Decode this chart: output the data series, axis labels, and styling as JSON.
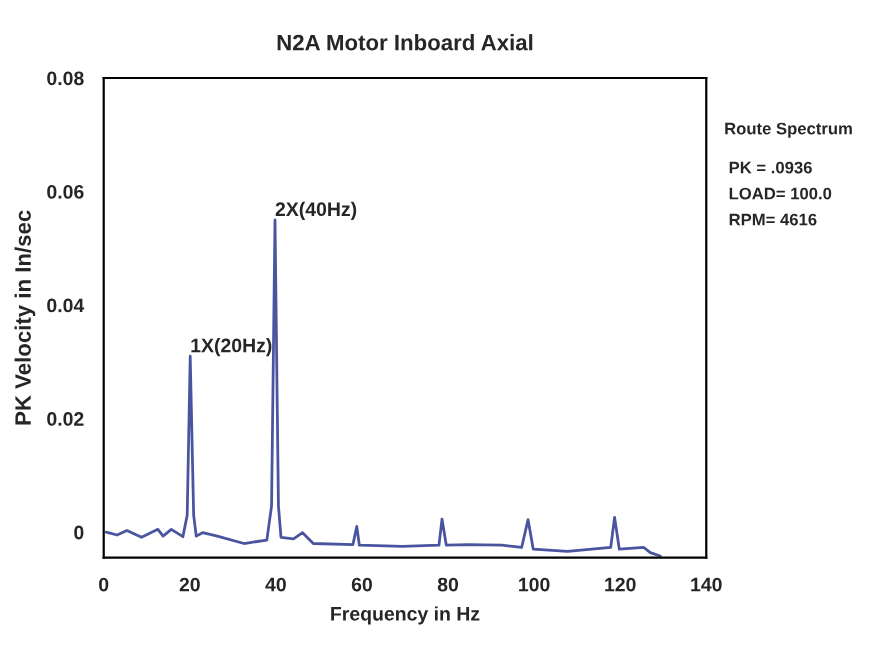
{
  "chart_data": {
    "type": "line",
    "title": "N2A Motor Inboard Axial",
    "xlabel": "Frequency in Hz",
    "ylabel": "PK Velocity in In/sec",
    "x": [
      0.6,
      3.1,
      5.4,
      8.8,
      12.6,
      13.8,
      15.7,
      18.4,
      19.4,
      20.1,
      20.9,
      21.5,
      23,
      26.4,
      32.6,
      37.9,
      39,
      39.8,
      40.6,
      41.2,
      44.1,
      46.2,
      48.7,
      57.9,
      58.8,
      59.4,
      69.4,
      77.9,
      78.6,
      79.6,
      84.8,
      92.5,
      97.1,
      98.6,
      99.8,
      107.8,
      117.8,
      118.7,
      119.8,
      125.5,
      127,
      129.3
    ],
    "series": [
      {
        "color": "#4a55a0",
        "values": [
          0,
          -0.0005,
          0.0003,
          -0.0009,
          0.0005,
          -0.0007,
          0.0005,
          -0.0008,
          0.003,
          0.031,
          0.003,
          -0.0007,
          -0.0001,
          -0.0007,
          -0.002,
          -0.0014,
          0.0046,
          0.055,
          0.0046,
          -0.0009,
          -0.0012,
          -0.0001,
          -0.002,
          -0.0022,
          0.001,
          -0.0023,
          -0.0025,
          -0.0023,
          0.0023,
          -0.0023,
          -0.0022,
          -0.0023,
          -0.0027,
          0.0022,
          -0.003,
          -0.0034,
          -0.0027,
          0.0026,
          -0.003,
          -0.0027,
          -0.0036,
          -0.0042
        ]
      }
    ],
    "xlim": [
      0,
      140
    ],
    "xticks": [
      0,
      20,
      40,
      60,
      80,
      100,
      120,
      140
    ],
    "ylim": [
      -0.0045,
      0.08
    ],
    "yticks": [
      0,
      0.02,
      0.04,
      0.06,
      0.08
    ],
    "annotations": [
      {
        "text": "1X(20Hz)",
        "x": 20.1,
        "y": 0.031
      },
      {
        "text": "2X(40Hz)",
        "x": 39.8,
        "y": 0.055
      },
      "Route Spectrum",
      "PK = .0936",
      "LOAD= 100.0",
      "RPM= 4616"
    ],
    "grid": false,
    "legend": false,
    "line_style": "solid",
    "marker": "none"
  }
}
